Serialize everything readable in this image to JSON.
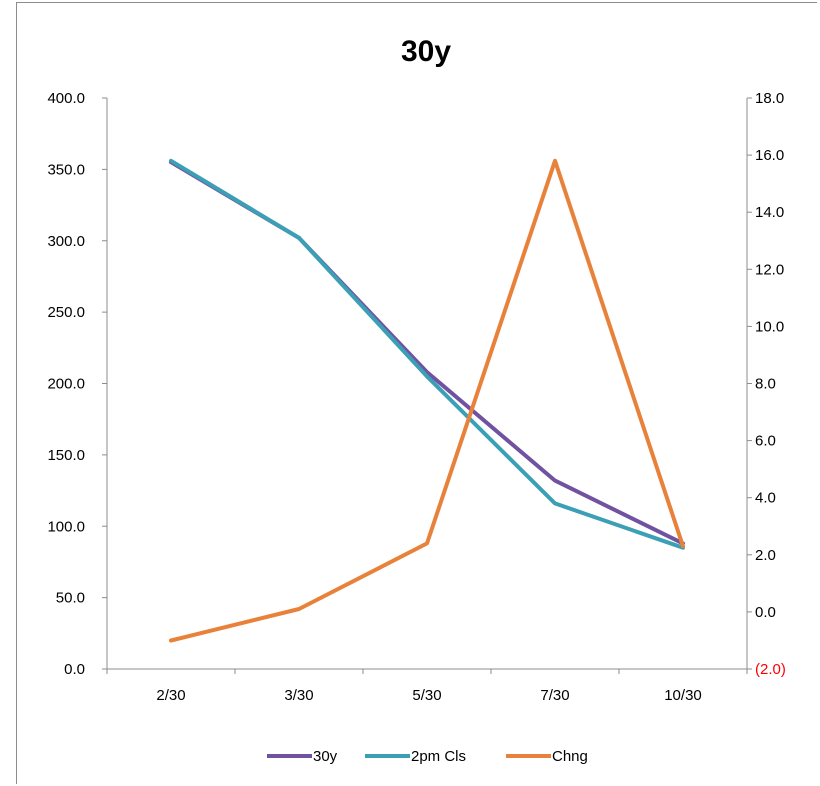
{
  "chart_data": {
    "type": "line",
    "title": "30y",
    "categories": [
      "2/30",
      "3/30",
      "5/30",
      "7/30",
      "10/30"
    ],
    "y_left": {
      "min": 0,
      "max": 400,
      "step": 50,
      "tick_labels": [
        "0.0",
        "50.0",
        "100.0",
        "150.0",
        "200.0",
        "250.0",
        "300.0",
        "350.0",
        "400.0"
      ]
    },
    "y_right": {
      "min": -2,
      "max": 18,
      "step": 2,
      "tick_labels": [
        "(2.0)",
        "0.0",
        "2.0",
        "4.0",
        "6.0",
        "8.0",
        "10.0",
        "12.0",
        "14.0",
        "16.0",
        "18.0"
      ],
      "negative_color": "#ff0000"
    },
    "series": [
      {
        "name": "30y",
        "axis": "left",
        "color": "#7052a0",
        "values": [
          355,
          302,
          208,
          132,
          88
        ]
      },
      {
        "name": "2pm Cls",
        "axis": "left",
        "color": "#3b9fb5",
        "values": [
          356,
          302,
          205,
          116,
          85
        ]
      },
      {
        "name": "Chng",
        "axis": "right",
        "color": "#e8823a",
        "values": [
          -1.0,
          0.1,
          2.4,
          15.8,
          2.3
        ]
      }
    ],
    "legend_position": "bottom",
    "grid": false
  }
}
